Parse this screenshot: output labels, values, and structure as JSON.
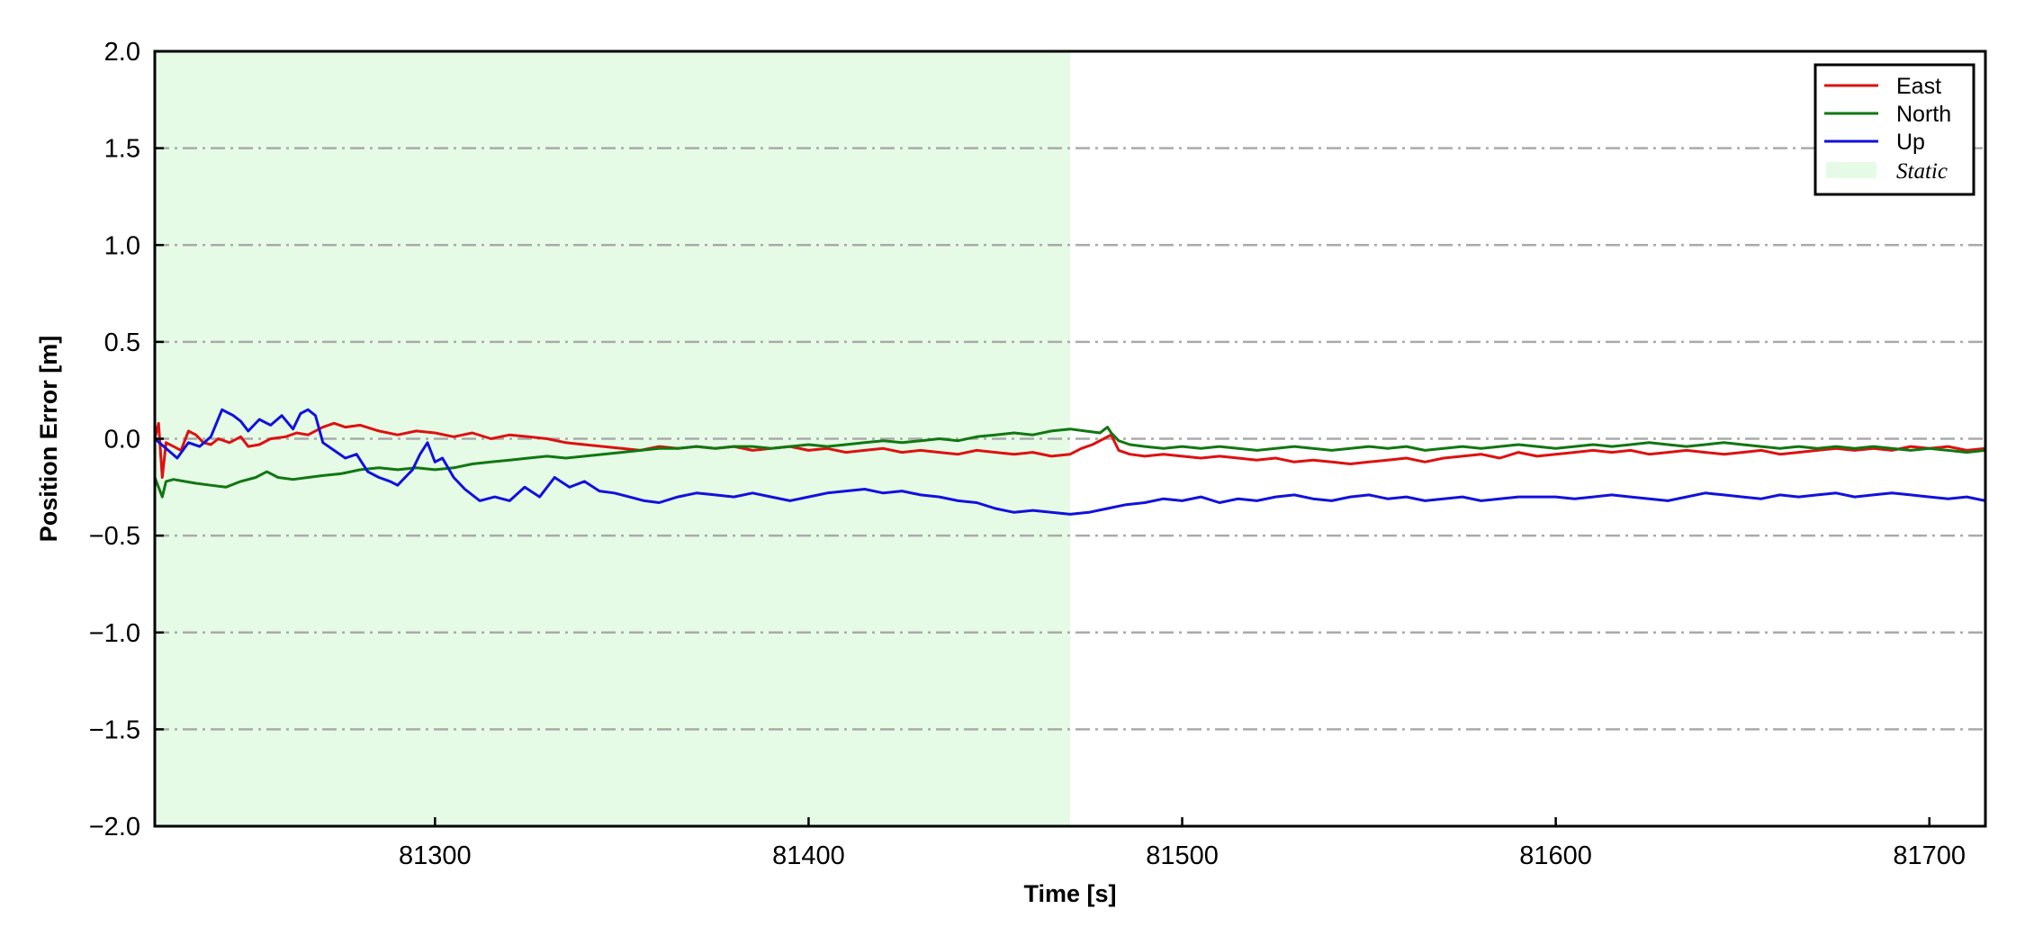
{
  "chart_data": {
    "type": "line",
    "xlabel": "Time [s]",
    "ylabel": "Position Error [m]",
    "xlim": [
      81225,
      81715
    ],
    "ylim": [
      -2.0,
      2.0
    ],
    "xticks": [
      81300,
      81400,
      81500,
      81600,
      81700
    ],
    "xtick_labels": [
      "81300",
      "81400",
      "81500",
      "81600",
      "81700"
    ],
    "yticks": [
      -2.0,
      -1.5,
      -1.0,
      -0.5,
      0.0,
      0.5,
      1.0,
      1.5,
      2.0
    ],
    "ytick_labels": [
      "−2.0",
      "−1.5",
      "−1.0",
      "−0.5",
      "0.0",
      "0.5",
      "1.0",
      "1.5",
      "2.0"
    ],
    "grid": "horizontal dash-dot",
    "legend_position": "top-right",
    "static_region": {
      "label": "Static",
      "x_start": 81225,
      "x_end": 81470,
      "color": "#e6fbe6"
    },
    "series": [
      {
        "name": "East",
        "color": "#dd1111",
        "x": [
          81225,
          81226,
          81227,
          81228,
          81230,
          81232,
          81234,
          81236,
          81238,
          81240,
          81242,
          81245,
          81248,
          81250,
          81253,
          81256,
          81260,
          81263,
          81266,
          81270,
          81273,
          81276,
          81280,
          81285,
          81290,
          81295,
          81300,
          81305,
          81310,
          81315,
          81320,
          81325,
          81330,
          81335,
          81340,
          81345,
          81350,
          81355,
          81360,
          81365,
          81370,
          81375,
          81380,
          81385,
          81390,
          81395,
          81400,
          81405,
          81410,
          81415,
          81420,
          81425,
          81430,
          81435,
          81440,
          81445,
          81450,
          81455,
          81460,
          81465,
          81470,
          81473,
          81476,
          81479,
          81481,
          81483,
          81486,
          81490,
          81495,
          81500,
          81505,
          81510,
          81515,
          81520,
          81525,
          81530,
          81535,
          81540,
          81545,
          81550,
          81555,
          81560,
          81565,
          81570,
          81575,
          81580,
          81585,
          81590,
          81595,
          81600,
          81605,
          81610,
          81615,
          81620,
          81625,
          81630,
          81635,
          81640,
          81645,
          81650,
          81655,
          81660,
          81665,
          81670,
          81675,
          81680,
          81685,
          81690,
          81695,
          81700,
          81705,
          81710,
          81715
        ],
        "values": [
          0.0,
          0.08,
          -0.2,
          -0.02,
          -0.04,
          -0.06,
          0.04,
          0.02,
          -0.02,
          -0.03,
          0.0,
          -0.02,
          0.01,
          -0.04,
          -0.03,
          0.0,
          0.01,
          0.03,
          0.02,
          0.06,
          0.08,
          0.06,
          0.07,
          0.04,
          0.02,
          0.04,
          0.03,
          0.01,
          0.03,
          0.0,
          0.02,
          0.01,
          0.0,
          -0.02,
          -0.03,
          -0.04,
          -0.05,
          -0.06,
          -0.04,
          -0.05,
          -0.04,
          -0.05,
          -0.04,
          -0.06,
          -0.05,
          -0.04,
          -0.06,
          -0.05,
          -0.07,
          -0.06,
          -0.05,
          -0.07,
          -0.06,
          -0.07,
          -0.08,
          -0.06,
          -0.07,
          -0.08,
          -0.07,
          -0.09,
          -0.08,
          -0.05,
          -0.03,
          0.0,
          0.02,
          -0.06,
          -0.08,
          -0.09,
          -0.08,
          -0.09,
          -0.1,
          -0.09,
          -0.1,
          -0.11,
          -0.1,
          -0.12,
          -0.11,
          -0.12,
          -0.13,
          -0.12,
          -0.11,
          -0.1,
          -0.12,
          -0.1,
          -0.09,
          -0.08,
          -0.1,
          -0.07,
          -0.09,
          -0.08,
          -0.07,
          -0.06,
          -0.07,
          -0.06,
          -0.08,
          -0.07,
          -0.06,
          -0.07,
          -0.08,
          -0.07,
          -0.06,
          -0.08,
          -0.07,
          -0.06,
          -0.05,
          -0.06,
          -0.05,
          -0.06,
          -0.04,
          -0.05,
          -0.04,
          -0.06,
          -0.05
        ]
      },
      {
        "name": "North",
        "color": "#117711",
        "x": [
          81225,
          81226,
          81227,
          81228,
          81230,
          81233,
          81236,
          81240,
          81244,
          81248,
          81252,
          81255,
          81258,
          81262,
          81266,
          81270,
          81275,
          81280,
          81285,
          81290,
          81295,
          81300,
          81305,
          81310,
          81315,
          81320,
          81325,
          81330,
          81335,
          81340,
          81345,
          81350,
          81355,
          81360,
          81365,
          81370,
          81375,
          81380,
          81385,
          81390,
          81395,
          81400,
          81405,
          81410,
          81415,
          81420,
          81425,
          81430,
          81435,
          81440,
          81445,
          81450,
          81455,
          81460,
          81465,
          81470,
          81474,
          81478,
          81480,
          81481,
          81483,
          81486,
          81490,
          81495,
          81500,
          81505,
          81510,
          81515,
          81520,
          81525,
          81530,
          81535,
          81540,
          81545,
          81550,
          81555,
          81560,
          81565,
          81570,
          81575,
          81580,
          81585,
          81590,
          81595,
          81600,
          81605,
          81610,
          81615,
          81620,
          81625,
          81630,
          81635,
          81640,
          81645,
          81650,
          81655,
          81660,
          81665,
          81670,
          81675,
          81680,
          81685,
          81690,
          81695,
          81700,
          81705,
          81710,
          81715
        ],
        "values": [
          -0.2,
          -0.25,
          -0.3,
          -0.22,
          -0.21,
          -0.22,
          -0.23,
          -0.24,
          -0.25,
          -0.22,
          -0.2,
          -0.17,
          -0.2,
          -0.21,
          -0.2,
          -0.19,
          -0.18,
          -0.16,
          -0.15,
          -0.16,
          -0.15,
          -0.16,
          -0.15,
          -0.13,
          -0.12,
          -0.11,
          -0.1,
          -0.09,
          -0.1,
          -0.09,
          -0.08,
          -0.07,
          -0.06,
          -0.05,
          -0.05,
          -0.04,
          -0.05,
          -0.04,
          -0.04,
          -0.05,
          -0.04,
          -0.03,
          -0.04,
          -0.03,
          -0.02,
          -0.01,
          -0.02,
          -0.01,
          0.0,
          -0.01,
          0.01,
          0.02,
          0.03,
          0.02,
          0.04,
          0.05,
          0.04,
          0.03,
          0.06,
          0.03,
          -0.01,
          -0.03,
          -0.04,
          -0.05,
          -0.04,
          -0.05,
          -0.04,
          -0.05,
          -0.06,
          -0.05,
          -0.04,
          -0.05,
          -0.06,
          -0.05,
          -0.04,
          -0.05,
          -0.04,
          -0.06,
          -0.05,
          -0.04,
          -0.05,
          -0.04,
          -0.03,
          -0.04,
          -0.05,
          -0.04,
          -0.03,
          -0.04,
          -0.03,
          -0.02,
          -0.03,
          -0.04,
          -0.03,
          -0.02,
          -0.03,
          -0.04,
          -0.05,
          -0.04,
          -0.05,
          -0.04,
          -0.05,
          -0.04,
          -0.05,
          -0.06,
          -0.05,
          -0.06,
          -0.07,
          -0.06
        ]
      },
      {
        "name": "Up",
        "color": "#1111dd",
        "x": [
          81225,
          81228,
          81231,
          81234,
          81237,
          81240,
          81243,
          81246,
          81248,
          81250,
          81253,
          81256,
          81259,
          81262,
          81264,
          81266,
          81268,
          81270,
          81273,
          81276,
          81279,
          81282,
          81285,
          81288,
          81290,
          81292,
          81294,
          81296,
          81298,
          81300,
          81302,
          81305,
          81308,
          81312,
          81316,
          81320,
          81324,
          81328,
          81332,
          81336,
          81340,
          81344,
          81348,
          81352,
          81356,
          81360,
          81365,
          81370,
          81375,
          81380,
          81385,
          81390,
          81395,
          81400,
          81405,
          81410,
          81415,
          81420,
          81425,
          81430,
          81435,
          81440,
          81445,
          81450,
          81455,
          81460,
          81465,
          81470,
          81475,
          81480,
          81485,
          81490,
          81495,
          81500,
          81505,
          81510,
          81515,
          81520,
          81525,
          81530,
          81535,
          81540,
          81545,
          81550,
          81555,
          81560,
          81565,
          81570,
          81575,
          81580,
          81585,
          81590,
          81595,
          81600,
          81605,
          81610,
          81615,
          81620,
          81625,
          81630,
          81635,
          81640,
          81645,
          81650,
          81655,
          81660,
          81665,
          81670,
          81675,
          81680,
          81685,
          81690,
          81695,
          81700,
          81705,
          81710,
          81715
        ],
        "values": [
          0.0,
          -0.05,
          -0.1,
          -0.02,
          -0.04,
          0.01,
          0.15,
          0.12,
          0.09,
          0.04,
          0.1,
          0.07,
          0.12,
          0.05,
          0.13,
          0.15,
          0.12,
          -0.02,
          -0.06,
          -0.1,
          -0.08,
          -0.17,
          -0.2,
          -0.22,
          -0.24,
          -0.2,
          -0.16,
          -0.08,
          -0.02,
          -0.12,
          -0.1,
          -0.2,
          -0.26,
          -0.32,
          -0.3,
          -0.32,
          -0.25,
          -0.3,
          -0.2,
          -0.25,
          -0.22,
          -0.27,
          -0.28,
          -0.3,
          -0.32,
          -0.33,
          -0.3,
          -0.28,
          -0.29,
          -0.3,
          -0.28,
          -0.3,
          -0.32,
          -0.3,
          -0.28,
          -0.27,
          -0.26,
          -0.28,
          -0.27,
          -0.29,
          -0.3,
          -0.32,
          -0.33,
          -0.36,
          -0.38,
          -0.37,
          -0.38,
          -0.39,
          -0.38,
          -0.36,
          -0.34,
          -0.33,
          -0.31,
          -0.32,
          -0.3,
          -0.33,
          -0.31,
          -0.32,
          -0.3,
          -0.29,
          -0.31,
          -0.32,
          -0.3,
          -0.29,
          -0.31,
          -0.3,
          -0.32,
          -0.31,
          -0.3,
          -0.32,
          -0.31,
          -0.3,
          -0.3,
          -0.3,
          -0.31,
          -0.3,
          -0.29,
          -0.3,
          -0.31,
          -0.32,
          -0.3,
          -0.28,
          -0.29,
          -0.3,
          -0.31,
          -0.29,
          -0.3,
          -0.29,
          -0.28,
          -0.3,
          -0.29,
          -0.28,
          -0.29,
          -0.3,
          -0.31,
          -0.3,
          -0.32
        ]
      }
    ]
  }
}
